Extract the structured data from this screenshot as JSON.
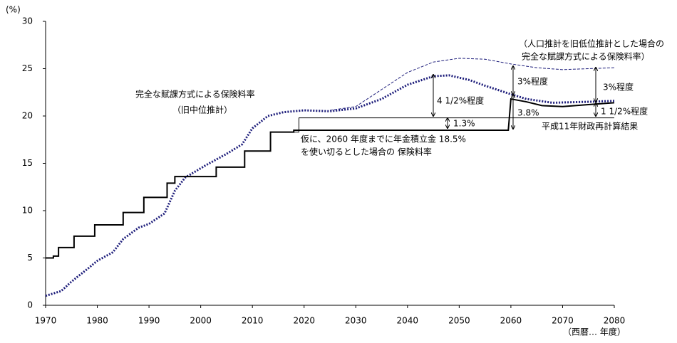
{
  "chart_data": {
    "type": "line",
    "y_label": "(%)",
    "x_label": "（西暦… 年度）",
    "xlim": [
      1970,
      2080
    ],
    "xticks": [
      1970,
      1980,
      1990,
      2000,
      2010,
      2020,
      2030,
      2040,
      2050,
      2060,
      2070,
      2080
    ],
    "ylim": [
      0,
      30
    ],
    "yticks": [
      0,
      5,
      10,
      15,
      20,
      25,
      30
    ],
    "grid": false,
    "series": [
      {
        "color": "#1c1c7a",
        "dash": "2 2",
        "width": 3,
        "x": [
          1970,
          1973,
          1975,
          1978,
          1980,
          1983,
          1985,
          1988,
          1990,
          1993,
          1995,
          1997,
          2001,
          2005,
          2008,
          2010,
          2013,
          2016,
          2020,
          2025,
          2030,
          2035,
          2040,
          2045,
          2048,
          2052,
          2055,
          2060,
          2063,
          2068,
          2075,
          2080
        ],
        "values": [
          1.0,
          1.5,
          2.5,
          3.8,
          4.7,
          5.6,
          7.0,
          8.2,
          8.6,
          9.7,
          12.1,
          13.5,
          14.8,
          16.0,
          17.0,
          18.7,
          20.0,
          20.4,
          20.6,
          20.5,
          20.8,
          21.8,
          23.3,
          24.2,
          24.3,
          23.8,
          23.2,
          22.3,
          21.8,
          21.4,
          21.5,
          21.6
        ]
      },
      {
        "color": "#1c1c7a",
        "dash": "4 2",
        "width": 1,
        "x": [
          2025,
          2030,
          2035,
          2040,
          2045,
          2050,
          2055,
          2060,
          2065,
          2070,
          2075,
          2080
        ],
        "values": [
          20.6,
          21.0,
          22.8,
          24.6,
          25.7,
          26.1,
          26.0,
          25.5,
          25.1,
          24.9,
          25.0,
          25.1
        ]
      },
      {
        "color": "#000000",
        "dash": "none",
        "width": 2,
        "x": [
          1970,
          1971.5,
          1971.5,
          1972.5,
          1972.5,
          1975.5,
          1975.5,
          1979.5,
          1979.5,
          1985,
          1985,
          1989,
          1989,
          1993.5,
          1993.5,
          1995,
          1995,
          2003,
          2003,
          2008.5,
          2008.5,
          2013.5,
          2013.5,
          2018,
          2018,
          2059.5,
          2060,
          2063,
          2066,
          2070,
          2075,
          2080
        ],
        "values": [
          5.0,
          5.0,
          5.2,
          5.2,
          6.1,
          6.1,
          7.3,
          7.3,
          8.5,
          8.5,
          9.8,
          9.8,
          11.4,
          11.4,
          12.9,
          12.9,
          13.6,
          13.6,
          14.6,
          14.6,
          16.3,
          16.3,
          18.3,
          18.3,
          18.5,
          18.5,
          21.8,
          21.5,
          21.1,
          21.0,
          21.2,
          21.4
        ]
      },
      {
        "color": "#000000",
        "dash": "none",
        "width": 1,
        "x": [
          2018,
          2019,
          2019,
          2080
        ],
        "values": [
          18.3,
          18.3,
          19.8,
          19.8
        ]
      }
    ],
    "annotations": [
      "完全な賦課方式による保険料率",
      "（旧中位推計）",
      "仮に、2060 年度までに年金積立金 18.5%",
      "を使い切るとした場合の 保険料率",
      "（人口推計を旧低位推計とした場合の",
      "完全な賦課方式による保険料率）",
      "3%程度",
      "3%程度",
      "4 1/2%程度",
      "1.3%",
      "3.8%",
      "1 1/2%程度",
      "平成11年財政再計算結果"
    ]
  }
}
